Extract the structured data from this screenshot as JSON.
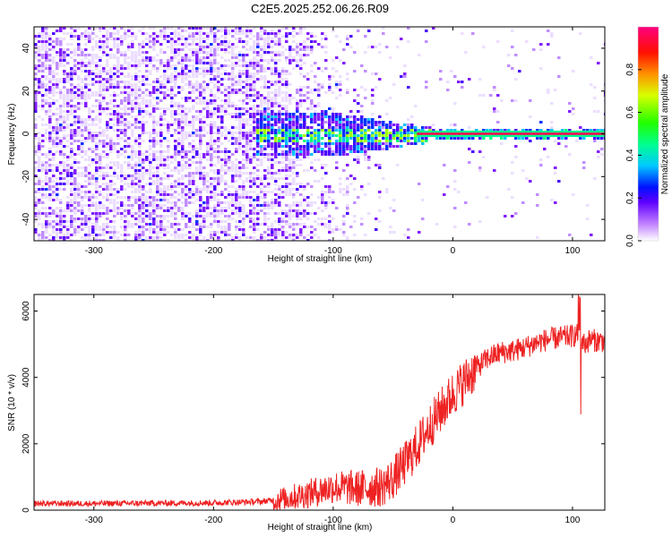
{
  "figure_title": "C2E5.2025.252.06.26.R09",
  "chart_data": [
    {
      "type": "heatmap",
      "title": "C2E5.2025.252.06.26.R09",
      "xlabel": "Height of straight line (km)",
      "ylabel": "Frequency (Hz)",
      "xlim": [
        -350,
        127
      ],
      "ylim": [
        -50,
        50
      ],
      "xticks": [
        -300,
        -200,
        -100,
        0,
        100
      ],
      "xtick_labels": [
        "-300",
        "-200",
        "-100",
        "0",
        "100"
      ],
      "yticks": [
        -40,
        -20,
        0,
        20,
        40
      ],
      "ytick_labels": [
        "-40",
        "-20",
        "0",
        "20",
        "40"
      ],
      "colorbar": {
        "label": "Normalized spectral amplitude",
        "range": [
          0,
          1
        ],
        "ticks": [
          0.0,
          0.2,
          0.4,
          0.6,
          0.8
        ],
        "tick_labels": [
          "0.0",
          "0.2",
          "0.4",
          "0.6",
          "0.8"
        ],
        "colors": [
          "#ffffff",
          "#8a00ff",
          "#0000ff",
          "#00ffff",
          "#00ff00",
          "#ffff00",
          "#ff8000",
          "#ff0000",
          "#ff0080"
        ]
      },
      "noise_region_km": [
        -350,
        -120
      ],
      "transition_region_km": [
        -160,
        -30
      ],
      "carrier_line": {
        "x_start": -30,
        "x_end": 127,
        "frequency_hz": 0,
        "amplitude": 1.0
      }
    },
    {
      "type": "line",
      "xlabel": "Height of straight line (km)",
      "ylabel": "SNR (10 * v/v)",
      "xlim": [
        -350,
        127
      ],
      "ylim": [
        0,
        6500
      ],
      "xticks": [
        -300,
        -200,
        -100,
        0,
        100
      ],
      "xtick_labels": [
        "-300",
        "-200",
        "-100",
        "0",
        "100"
      ],
      "yticks": [
        0,
        2000,
        4000,
        6000
      ],
      "ytick_labels": [
        "0",
        "2000",
        "4000",
        "6000"
      ],
      "series": [
        {
          "name": "SNR",
          "color": "#ee2222",
          "x": [
            -350,
            -300,
            -250,
            -200,
            -160,
            -140,
            -120,
            -100,
            -80,
            -60,
            -50,
            -40,
            -30,
            -20,
            -10,
            0,
            10,
            20,
            30,
            40,
            50,
            60,
            70,
            80,
            90,
            100,
            105,
            110,
            115,
            120,
            127
          ],
          "y": [
            200,
            200,
            210,
            220,
            260,
            350,
            500,
            700,
            650,
            700,
            950,
            1400,
            1900,
            2500,
            3000,
            3500,
            3900,
            4300,
            4600,
            4750,
            4800,
            4900,
            5050,
            5150,
            5200,
            5250,
            5300,
            5000,
            5150,
            5100,
            5100
          ]
        }
      ]
    }
  ]
}
